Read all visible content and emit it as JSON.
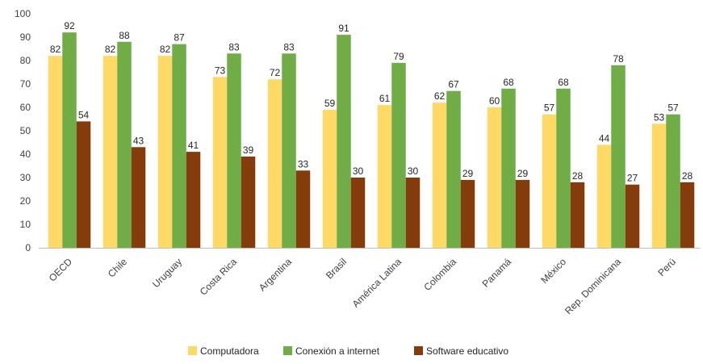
{
  "chart_data": {
    "type": "bar",
    "categories": [
      "OECD",
      "Chile",
      "Uruguay",
      "Costa Rica",
      "Argentina",
      "Brasil",
      "América Latina",
      "Colombia",
      "Panamá",
      "México",
      "Rep. Dominicana",
      "Perú"
    ],
    "series": [
      {
        "name": "Computadora",
        "color": "#FFD966",
        "values": [
          82,
          82,
          82,
          73,
          72,
          59,
          61,
          62,
          60,
          57,
          44,
          53
        ]
      },
      {
        "name": "Conexión a internet",
        "color": "#70AD47",
        "values": [
          92,
          88,
          87,
          83,
          83,
          91,
          79,
          67,
          68,
          68,
          78,
          57
        ]
      },
      {
        "name": "Software educativo",
        "color": "#843C0C",
        "values": [
          54,
          43,
          41,
          39,
          33,
          30,
          30,
          29,
          29,
          28,
          27,
          28
        ]
      }
    ],
    "yticks": [
      0,
      10,
      20,
      30,
      40,
      50,
      60,
      70,
      80,
      90,
      100
    ],
    "ylim": [
      0,
      100
    ],
    "grid": false,
    "legend_position": "bottom",
    "title": "",
    "xlabel": "",
    "ylabel": ""
  }
}
